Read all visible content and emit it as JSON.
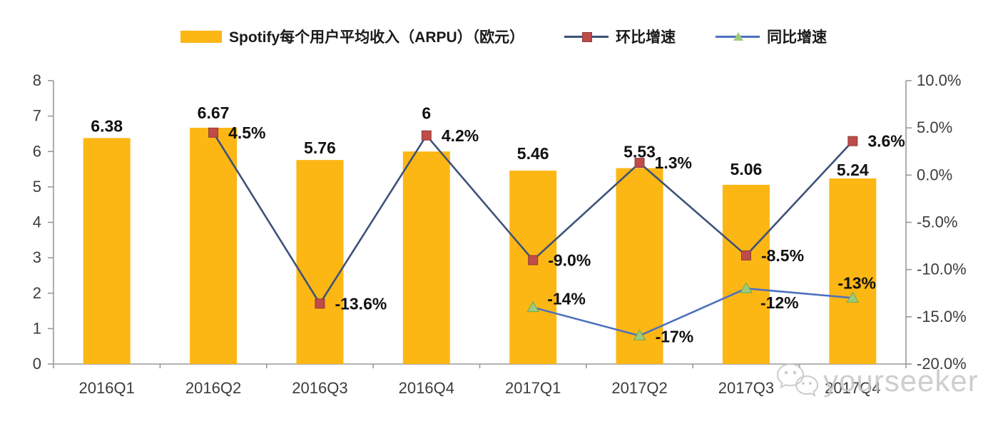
{
  "chart_data": {
    "type": "bar",
    "subtype": "bar-line-combo",
    "title": "",
    "categories": [
      "2016Q1",
      "2016Q2",
      "2016Q3",
      "2016Q4",
      "2017Q1",
      "2017Q2",
      "2017Q3",
      "2017Q4"
    ],
    "bar_series": {
      "name": "Spotify每个用户平均收入（ARPU）（欧元）",
      "values": [
        6.38,
        6.67,
        5.76,
        6,
        5.46,
        5.53,
        5.06,
        5.24
      ],
      "labels": [
        "6.38",
        "6.67",
        "5.76",
        "6",
        "5.46",
        "5.53",
        "5.06",
        "5.24"
      ],
      "color": "#FDB714",
      "axis": "left"
    },
    "line_series": [
      {
        "name": "环比增速",
        "values": [
          null,
          4.5,
          -13.6,
          4.2,
          -9.0,
          1.3,
          -8.5,
          3.6
        ],
        "labels": [
          null,
          "4.5%",
          "-13.6%",
          "4.2%",
          "-9.0%",
          "1.3%",
          "-8.5%",
          "3.6%"
        ],
        "color": "#3E5278",
        "marker": "square",
        "marker_color": "#BE4C48",
        "marker_edge_color": "#8E3B38",
        "axis": "right"
      },
      {
        "name": "同比增速",
        "values": [
          null,
          null,
          null,
          null,
          -14,
          -17,
          -12,
          -13
        ],
        "labels": [
          null,
          null,
          null,
          null,
          "-14%",
          "-17%",
          "-12%",
          "-13%"
        ],
        "color": "#4D71BE",
        "marker": "triangle",
        "marker_color": "#9CCB7B",
        "marker_edge_color": "#6FA84F",
        "axis": "right"
      }
    ],
    "left_axis": {
      "min": 0,
      "max": 8,
      "tick_labels": [
        "0",
        "1",
        "2",
        "3",
        "4",
        "5",
        "6",
        "7",
        "8"
      ]
    },
    "right_axis": {
      "min": -20,
      "max": 10,
      "tick_labels": [
        "10.0%",
        "5.0%",
        "0.0%",
        "-5.0%",
        "-10.0%",
        "-15.0%",
        "-20.0%"
      ]
    },
    "grid": false,
    "legend_position": "top",
    "axis_color": "#9a9a9a",
    "tick_text_color": "#3c3c3c",
    "data_label_color": "#111111"
  },
  "watermark": {
    "text": "yourseeker",
    "icon": "wechat-icon"
  }
}
